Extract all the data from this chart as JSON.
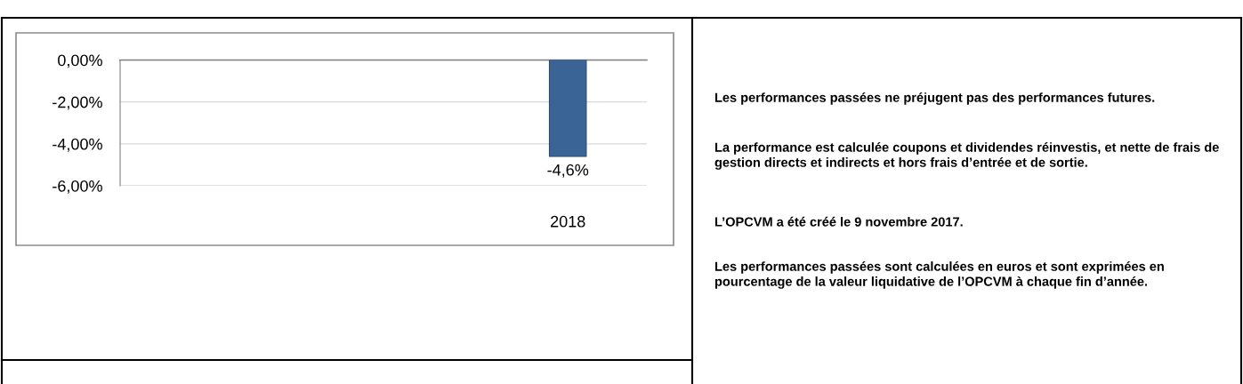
{
  "chart_data": {
    "type": "bar",
    "categories": [
      null,
      null,
      null,
      null,
      null,
      null,
      null,
      null,
      "2018",
      null
    ],
    "values": [
      null,
      null,
      null,
      null,
      null,
      null,
      null,
      null,
      -4.6,
      null
    ],
    "value_labels": [
      null,
      null,
      null,
      null,
      null,
      null,
      null,
      null,
      "-4,6%",
      null
    ],
    "color": "#3b6496",
    "ylim": [
      -6,
      0
    ],
    "yticks": [
      {
        "value": 0,
        "label": "0,00%"
      },
      {
        "value": -2,
        "label": "-2,00%"
      },
      {
        "value": -4,
        "label": "-4,00%"
      },
      {
        "value": -6,
        "label": "-6,00%"
      }
    ],
    "grid": "y",
    "annotations": [
      "Les performances passées ne préjugent pas des performances futures.",
      "La performance est calculée coupons et dividendes réinvestis, et nette de frais de gestion directs et indirects et hors frais d’entrée et de sortie.",
      "L’OPCVM a été créé le 9 novembre 2017.",
      "Les performances passées sont calculées en euros et sont exprimées en pourcentage de la valeur liquidative de l’OPCVM à chaque fin d’année."
    ]
  }
}
